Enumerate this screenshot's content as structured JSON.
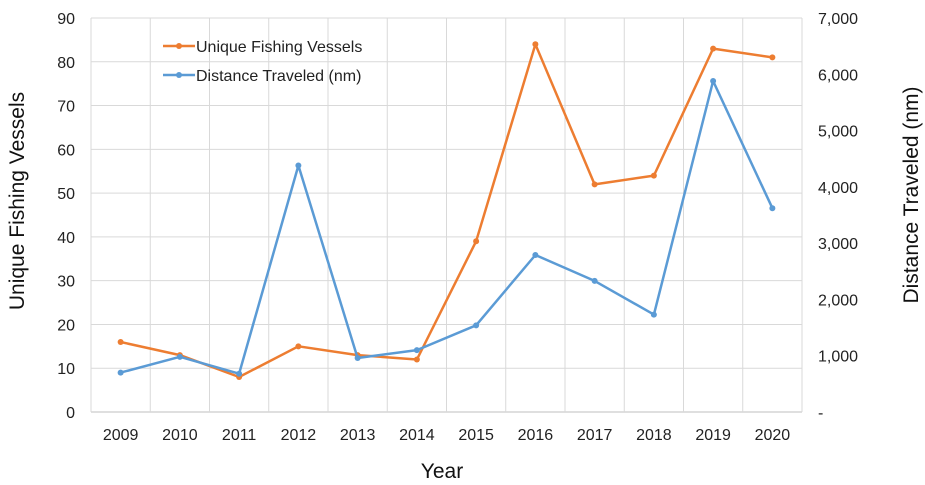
{
  "chart_data": {
    "type": "line",
    "categories": [
      "2009",
      "2010",
      "2011",
      "2012",
      "2013",
      "2014",
      "2015",
      "2016",
      "2017",
      "2018",
      "2019",
      "2020"
    ],
    "series": [
      {
        "name": "Unique Fishing Vessels",
        "axis": "left",
        "color": "#ED7D31",
        "values": [
          16,
          13,
          8,
          15,
          13,
          12,
          39,
          84,
          52,
          54,
          83,
          81
        ]
      },
      {
        "name": "Distance Traveled (nm)",
        "axis": "right",
        "color": "#5B9BD5",
        "values": [
          700,
          980,
          680,
          4380,
          960,
          1100,
          1540,
          2790,
          2330,
          1730,
          5880,
          3620
        ]
      }
    ],
    "xlabel": "Year",
    "ylabel": "Unique Fishing Vessels",
    "y2label": "Distance Traveled (nm)",
    "ylim": [
      0,
      90
    ],
    "y2lim": [
      0,
      7000
    ],
    "yticks": [
      "0",
      "10",
      "20",
      "30",
      "40",
      "50",
      "60",
      "70",
      "80",
      "90"
    ],
    "y2ticks": [
      "-",
      "1,000",
      "2,000",
      "3,000",
      "4,000",
      "5,000",
      "6,000",
      "7,000"
    ],
    "grid": true,
    "legend": "top-left"
  }
}
